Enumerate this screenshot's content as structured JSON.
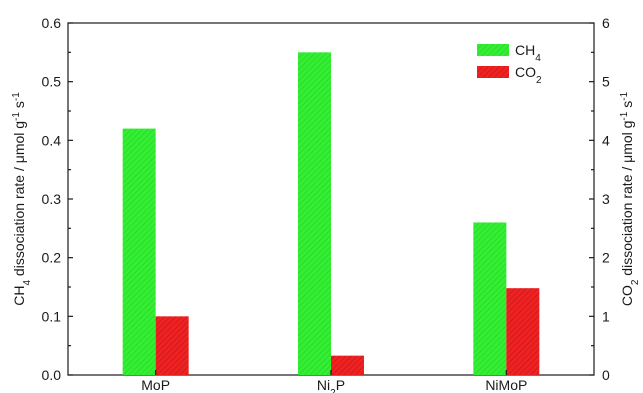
{
  "chart_data": {
    "type": "bar",
    "categories": [
      "MoP",
      "Ni2P",
      "NiMoP"
    ],
    "category_labels": [
      {
        "base": "MoP",
        "sub": ""
      },
      {
        "base": "Ni",
        "sub": "2",
        "rest": "P"
      },
      {
        "base": "NiMoP",
        "sub": ""
      }
    ],
    "series": [
      {
        "name": "CH4",
        "axis": "left",
        "values": [
          0.42,
          0.55,
          0.26
        ],
        "color": "#33ee33"
      },
      {
        "name": "CO2",
        "axis": "right",
        "values": [
          1.0,
          0.33,
          1.48
        ],
        "color": "#ee2222"
      }
    ],
    "legend": [
      {
        "base": "CH",
        "sub": "4"
      },
      {
        "base": "CO",
        "sub": "2"
      }
    ],
    "y_left": {
      "label_parts": {
        "pre": "CH",
        "sub": "4",
        "post": " dissociation rate / μmol g",
        "sup1": "-1",
        "mid": " s",
        "sup2": "-1"
      },
      "ylim": [
        0,
        0.6
      ],
      "ticks": [
        "0.0",
        "0.1",
        "0.2",
        "0.3",
        "0.4",
        "0.5",
        "0.6"
      ]
    },
    "y_right": {
      "label_parts": {
        "pre": "CO",
        "sub": "2",
        "post": " dissociation rate / μmol g",
        "sup1": "-1",
        "mid": " s",
        "sup2": "-1"
      },
      "ylim": [
        0,
        6
      ],
      "ticks": [
        "0",
        "1",
        "2",
        "3",
        "4",
        "5",
        "6"
      ]
    },
    "grid": false,
    "legend_position": "top-right"
  }
}
